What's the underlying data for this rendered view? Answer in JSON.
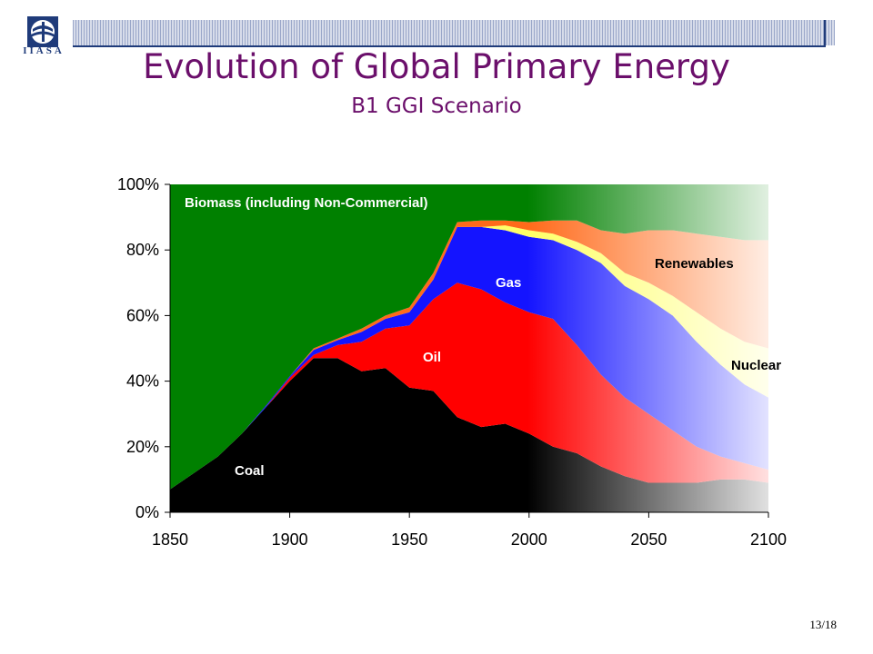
{
  "logo": {
    "text": "IIASA"
  },
  "page": {
    "number": "13/18"
  },
  "chart_data": {
    "type": "area",
    "stacked": true,
    "normalized_percent": true,
    "title": "Evolution of Global Primary Energy",
    "subtitle": "B1 GGI Scenario",
    "xlabel": "",
    "ylabel": "",
    "x": [
      1850,
      1860,
      1870,
      1880,
      1890,
      1900,
      1910,
      1920,
      1930,
      1940,
      1950,
      1960,
      1970,
      1980,
      1990,
      2000,
      2010,
      2020,
      2030,
      2040,
      2050,
      2060,
      2070,
      2080,
      2090,
      2100
    ],
    "xlim": [
      1850,
      2100
    ],
    "ylim": [
      0,
      100
    ],
    "x_ticks": [
      "1850",
      "1900",
      "1950",
      "2000",
      "2050",
      "2100"
    ],
    "x_tick_values": [
      1850,
      1900,
      1950,
      2000,
      2050,
      2100
    ],
    "y_ticks": [
      "0%",
      "20%",
      "40%",
      "60%",
      "80%",
      "100%"
    ],
    "y_tick_values": [
      0,
      20,
      40,
      60,
      80,
      100
    ],
    "series": [
      {
        "name": "Coal",
        "color": "#000000",
        "values": [
          7,
          12,
          17,
          24,
          32,
          40,
          47,
          47,
          43,
          44,
          38,
          37,
          29,
          26,
          27,
          24,
          20,
          18,
          14,
          11,
          9,
          9,
          9,
          10,
          10,
          9
        ]
      },
      {
        "name": "Oil",
        "color": "#ff0000",
        "values": [
          0,
          0,
          0,
          0,
          0,
          1,
          1,
          4,
          9,
          12,
          19,
          28,
          41,
          42,
          37,
          37,
          39,
          33,
          28,
          24,
          21,
          16,
          11,
          7,
          5,
          4
        ]
      },
      {
        "name": "Gas",
        "color": "#1414ff",
        "values": [
          0,
          0,
          0,
          0,
          0.5,
          0.5,
          1.5,
          1.5,
          3,
          3,
          4,
          6,
          17,
          19,
          22,
          23,
          24,
          29,
          34,
          34,
          35,
          35,
          32,
          28,
          24,
          22
        ]
      },
      {
        "name": "Nuclear",
        "color": "#ffff66",
        "values": [
          0,
          0,
          0,
          0,
          0,
          0,
          0,
          0,
          0,
          0,
          0,
          0,
          0,
          0,
          1.5,
          2,
          2,
          2.5,
          3,
          4,
          5,
          6,
          9,
          11,
          13,
          15
        ]
      },
      {
        "name": "Renewables",
        "color": "#ff6a1a",
        "values": [
          0,
          0,
          0,
          0,
          0,
          0,
          0.5,
          0.5,
          1,
          1,
          1.5,
          2,
          1.5,
          2,
          1.5,
          2.5,
          4,
          6.5,
          7,
          12,
          16,
          20,
          24,
          28,
          31,
          33
        ]
      },
      {
        "name": "Biomass (including Non-Commercial)",
        "color": "#008000",
        "values": [
          93,
          88,
          83,
          76,
          67.5,
          58.5,
          50,
          47,
          44,
          40,
          37.5,
          27,
          11.5,
          11,
          11,
          11.5,
          11,
          11,
          14,
          15,
          14,
          14,
          15,
          16,
          17,
          17
        ]
      }
    ],
    "labels": {
      "coal": "Coal",
      "oil": "Oil",
      "gas": "Gas",
      "nuclear": "Nuclear",
      "renewables": "Renewables",
      "biomass": "Biomass (including Non-Commercial)"
    },
    "label_colors": {
      "coal": "#ffffff",
      "oil": "#ffffff",
      "gas": "#ffffff",
      "nuclear": "#000000",
      "renewables": "#000000",
      "biomass": "#ffffff"
    },
    "future_fade": {
      "from": 2000,
      "to": 2100
    },
    "grid": false
  }
}
